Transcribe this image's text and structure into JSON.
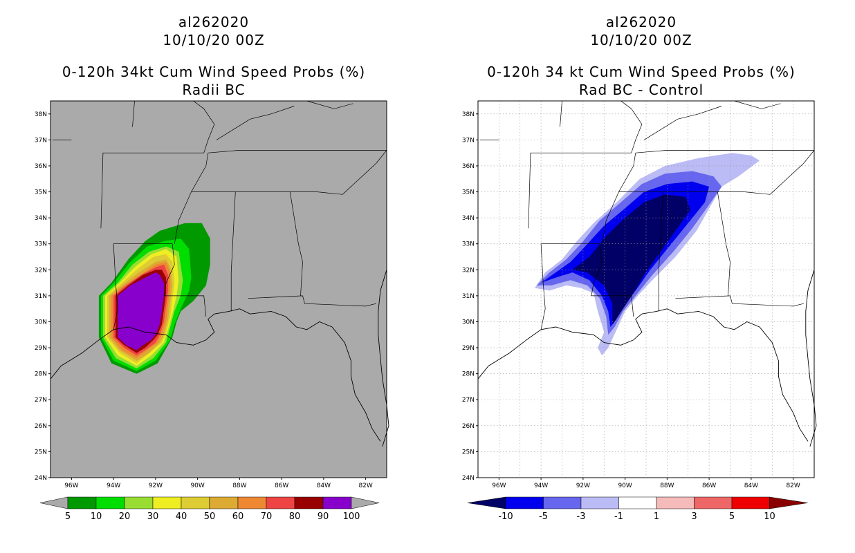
{
  "left_panel": {
    "storm_id": "al262020",
    "datetime": "10/10/20 00Z",
    "title": "0-120h 34kt Cum Wind Speed Probs (%)",
    "subtitle": "Radii BC",
    "colorbar": {
      "colors": [
        "#009900",
        "#00dd00",
        "#99dd33",
        "#eeee22",
        "#ddcc33",
        "#ddaa33",
        "#ee8833",
        "#ee4444",
        "#990000",
        "#8800cc"
      ],
      "labels": [
        "5",
        "10",
        "20",
        "30",
        "40",
        "50",
        "60",
        "70",
        "80",
        "90",
        "100"
      ]
    }
  },
  "right_panel": {
    "storm_id": "al262020",
    "datetime": "10/10/20 00Z",
    "title": "0-120h 34 kt Cum Wind Speed Probs (%)",
    "subtitle": "Rad BC - Control",
    "colorbar": {
      "colors": [
        "#000066",
        "#0000ee",
        "#6666ee",
        "#bbbbf5",
        "#ffffff",
        "#f5bbbb",
        "#ee6666",
        "#ee0000",
        "#880000"
      ],
      "labels": [
        "-10",
        "-5",
        "-3",
        "-1",
        "1",
        "3",
        "5",
        "10"
      ]
    }
  },
  "lat_labels": [
    "38N",
    "37N",
    "36N",
    "35N",
    "34N",
    "33N",
    "32N",
    "31N",
    "30N",
    "29N",
    "28N",
    "27N",
    "26N",
    "25N",
    "24N"
  ],
  "lon_labels": [
    "96W",
    "94W",
    "92W",
    "90W",
    "88W",
    "86W",
    "84W",
    "82W"
  ],
  "colors": {
    "land_left": "#aaaaaa",
    "land_right": "#ffffff"
  }
}
